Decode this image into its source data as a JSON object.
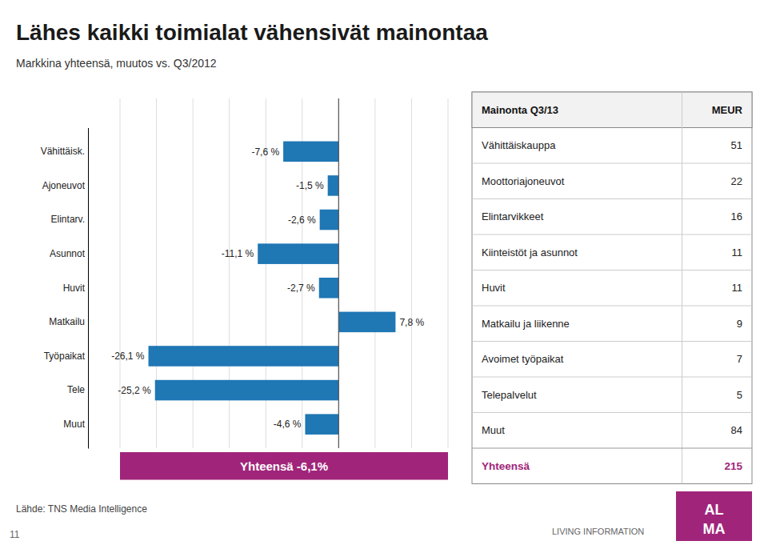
{
  "chart_data": {
    "type": "bar",
    "orientation": "horizontal",
    "title": "Lähes kaikki toimialat vähensivät mainontaa",
    "subtitle": "Markkina yhteensä, muutos vs. Q3/2012",
    "categories": [
      "Vähittäisk.",
      "Ajoneuvot",
      "Elintarv.",
      "Asunnot",
      "Huvit",
      "Matkailu",
      "Työpaikat",
      "Tele",
      "Muut"
    ],
    "values": [
      -7.6,
      -1.5,
      -2.6,
      -11.1,
      -2.7,
      7.8,
      -26.1,
      -25.2,
      -4.6
    ],
    "value_labels": [
      "-7,6 %",
      "-1,5 %",
      "-2,6 %",
      "-11,1 %",
      "-2,7 %",
      "7,8 %",
      "-26,1 %",
      "-25,2 %",
      "-4,6 %"
    ],
    "data_labels": true,
    "xlim": [
      -30,
      15
    ],
    "xticks": [
      -30,
      -25,
      -20,
      -15,
      -10,
      -5,
      0,
      5,
      10,
      15
    ],
    "grid": true,
    "tick_labels": "y",
    "total": {
      "label": "Yhteensä -6,1%",
      "color": "#a0257a"
    },
    "table": {
      "header": [
        "Mainonta Q3/13",
        "MEUR"
      ],
      "rows": [
        [
          "Vähittäiskauppa",
          "51"
        ],
        [
          "Moottoriajoneuvot",
          "22"
        ],
        [
          "Elintarvikkeet",
          "16"
        ],
        [
          "Kiinteistöt ja asunnot",
          "11"
        ],
        [
          "Huvit",
          "11"
        ],
        [
          "Matkailu ja liikenne",
          "9"
        ],
        [
          "Avoimet työpaikat",
          "7"
        ],
        [
          "Telepalvelut",
          "5"
        ],
        [
          "Muut",
          "84"
        ]
      ],
      "total_row": [
        "Yhteensä",
        "215"
      ]
    },
    "source": "Lähde: TNS Media Intelligence",
    "page_number": "11",
    "branding": "LIVING INFORMATION",
    "logo": [
      "AL",
      "MA"
    ]
  }
}
